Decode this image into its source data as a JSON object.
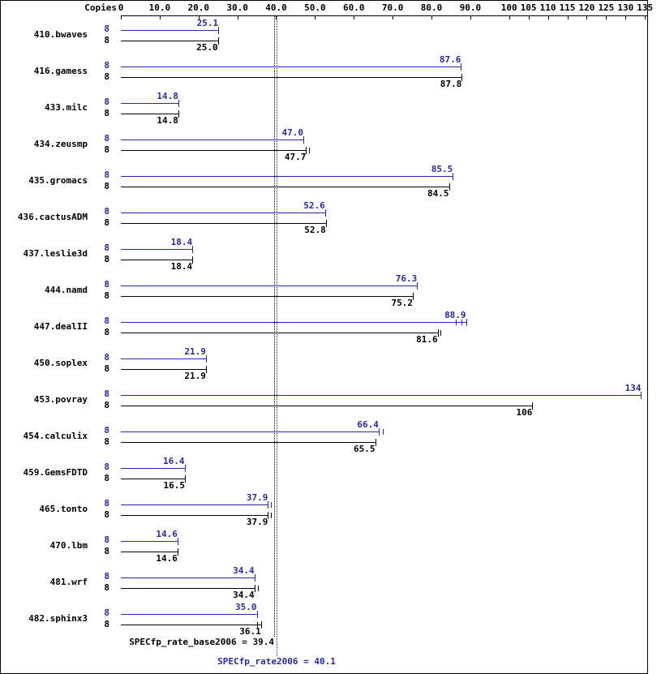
{
  "chart_data": {
    "type": "bar",
    "orientation": "horizontal",
    "copies_header": "Copies",
    "colors": {
      "peak": "#2929a3",
      "base": "#000000"
    },
    "x_axis": {
      "min": 0,
      "max": 136,
      "ticks": [
        {
          "value": 0,
          "label": "0"
        },
        {
          "value": 10,
          "label": "10.0"
        },
        {
          "value": 20,
          "label": "20.0"
        },
        {
          "value": 30,
          "label": "30.0"
        },
        {
          "value": 40,
          "label": "40.0"
        },
        {
          "value": 50,
          "label": "50.0"
        },
        {
          "value": 60,
          "label": "60.0"
        },
        {
          "value": 70,
          "label": "70.0"
        },
        {
          "value": 80,
          "label": "80.0"
        },
        {
          "value": 90,
          "label": "90.0"
        },
        {
          "value": 100,
          "label": "100"
        },
        {
          "value": 105,
          "label": "105"
        },
        {
          "value": 110,
          "label": "110"
        },
        {
          "value": 115,
          "label": "115"
        },
        {
          "value": 120,
          "label": "120"
        },
        {
          "value": 125,
          "label": "125"
        },
        {
          "value": 130,
          "label": "130"
        },
        {
          "value": 135,
          "label": "135"
        }
      ]
    },
    "series": [
      {
        "key": "peak",
        "name": "SPECfp_rate2006"
      },
      {
        "key": "base",
        "name": "SPECfp_rate_base2006"
      }
    ],
    "benchmarks": [
      {
        "name": "410.bwaves",
        "peak": {
          "copies": "8",
          "value": 25.1,
          "label": "25.1",
          "run_marks": [
            25.1
          ]
        },
        "base": {
          "copies": "8",
          "value": 25.0,
          "label": "25.0",
          "run_marks": [
            25.0
          ]
        }
      },
      {
        "name": "416.gamess",
        "peak": {
          "copies": "8",
          "value": 87.6,
          "label": "87.6",
          "run_marks": [
            87.6
          ]
        },
        "base": {
          "copies": "8",
          "value": 87.8,
          "label": "87.8",
          "run_marks": [
            87.8
          ]
        }
      },
      {
        "name": "433.milc",
        "peak": {
          "copies": "8",
          "value": 14.8,
          "label": "14.8",
          "run_marks": [
            14.8
          ]
        },
        "base": {
          "copies": "8",
          "value": 14.8,
          "label": "14.8",
          "run_marks": [
            14.8
          ]
        }
      },
      {
        "name": "434.zeusmp",
        "peak": {
          "copies": "8",
          "value": 47.0,
          "label": "47.0",
          "run_marks": [
            47.0
          ]
        },
        "base": {
          "copies": "8",
          "value": 47.7,
          "label": "47.7",
          "run_marks": [
            47.7,
            48.4
          ]
        }
      },
      {
        "name": "435.gromacs",
        "peak": {
          "copies": "8",
          "value": 85.5,
          "label": "85.5",
          "run_marks": [
            85.5
          ]
        },
        "base": {
          "copies": "8",
          "value": 84.5,
          "label": "84.5",
          "run_marks": [
            84.5
          ]
        }
      },
      {
        "name": "436.cactusADM",
        "peak": {
          "copies": "8",
          "value": 52.6,
          "label": "52.6",
          "run_marks": [
            52.6
          ]
        },
        "base": {
          "copies": "8",
          "value": 52.8,
          "label": "52.8",
          "run_marks": [
            52.8
          ]
        }
      },
      {
        "name": "437.leslie3d",
        "peak": {
          "copies": "8",
          "value": 18.4,
          "label": "18.4",
          "run_marks": [
            18.4
          ]
        },
        "base": {
          "copies": "8",
          "value": 18.4,
          "label": "18.4",
          "run_marks": [
            18.4
          ]
        }
      },
      {
        "name": "444.namd",
        "peak": {
          "copies": "8",
          "value": 76.3,
          "label": "76.3",
          "run_marks": [
            76.3
          ]
        },
        "base": {
          "copies": "8",
          "value": 75.2,
          "label": "75.2",
          "run_marks": [
            75.2
          ]
        }
      },
      {
        "name": "447.dealII",
        "peak": {
          "copies": "8",
          "value": 88.9,
          "label": "88.9",
          "run_marks": [
            86.3,
            87.7,
            88.9
          ]
        },
        "base": {
          "copies": "8",
          "value": 81.6,
          "label": "81.6",
          "run_marks": [
            81.6,
            82.4
          ]
        }
      },
      {
        "name": "450.soplex",
        "peak": {
          "copies": "8",
          "value": 21.9,
          "label": "21.9",
          "run_marks": [
            21.9
          ]
        },
        "base": {
          "copies": "8",
          "value": 21.9,
          "label": "21.9",
          "run_marks": [
            21.9
          ]
        }
      },
      {
        "name": "453.povray",
        "peak": {
          "copies": "8",
          "value": 134,
          "label": "134",
          "run_marks": [
            134
          ]
        },
        "base": {
          "copies": "8",
          "value": 106,
          "label": "106",
          "run_marks": [
            106
          ]
        }
      },
      {
        "name": "454.calculix",
        "peak": {
          "copies": "8",
          "value": 66.4,
          "label": "66.4",
          "run_marks": [
            66.4,
            67.4
          ]
        },
        "base": {
          "copies": "8",
          "value": 65.5,
          "label": "65.5",
          "run_marks": [
            65.5
          ]
        }
      },
      {
        "name": "459.GemsFDTD",
        "peak": {
          "copies": "8",
          "value": 16.4,
          "label": "16.4",
          "run_marks": [
            16.4
          ]
        },
        "base": {
          "copies": "8",
          "value": 16.5,
          "label": "16.5",
          "run_marks": [
            16.5
          ]
        }
      },
      {
        "name": "465.tonto",
        "peak": {
          "copies": "8",
          "value": 37.9,
          "label": "37.9",
          "run_marks": [
            37.9,
            38.6
          ]
        },
        "base": {
          "copies": "8",
          "value": 37.9,
          "label": "37.9",
          "run_marks": [
            37.9,
            38.6
          ]
        }
      },
      {
        "name": "470.lbm",
        "peak": {
          "copies": "8",
          "value": 14.6,
          "label": "14.6",
          "run_marks": [
            14.6
          ]
        },
        "base": {
          "copies": "8",
          "value": 14.6,
          "label": "14.6",
          "run_marks": [
            14.6
          ]
        }
      },
      {
        "name": "481.wrf",
        "peak": {
          "copies": "8",
          "value": 34.4,
          "label": "34.4",
          "run_marks": [
            34.4
          ]
        },
        "base": {
          "copies": "8",
          "value": 34.4,
          "label": "34.4",
          "run_marks": [
            34.4,
            35.3
          ]
        }
      },
      {
        "name": "482.sphinx3",
        "peak": {
          "copies": "8",
          "value": 35.0,
          "label": "35.0",
          "run_marks": [
            35.0
          ]
        },
        "base": {
          "copies": "8",
          "value": 36.1,
          "label": "36.1",
          "run_marks": [
            35.1,
            36.1
          ]
        }
      }
    ],
    "reference_lines": [
      {
        "name": "SPECfp_rate_base2006",
        "value": 39.4,
        "label": "SPECfp_rate_base2006 = 39.4",
        "color": "#000000"
      },
      {
        "name": "SPECfp_rate2006",
        "value": 40.1,
        "label": "SPECfp_rate2006 = 40.1",
        "color": "#2929a3"
      }
    ]
  }
}
